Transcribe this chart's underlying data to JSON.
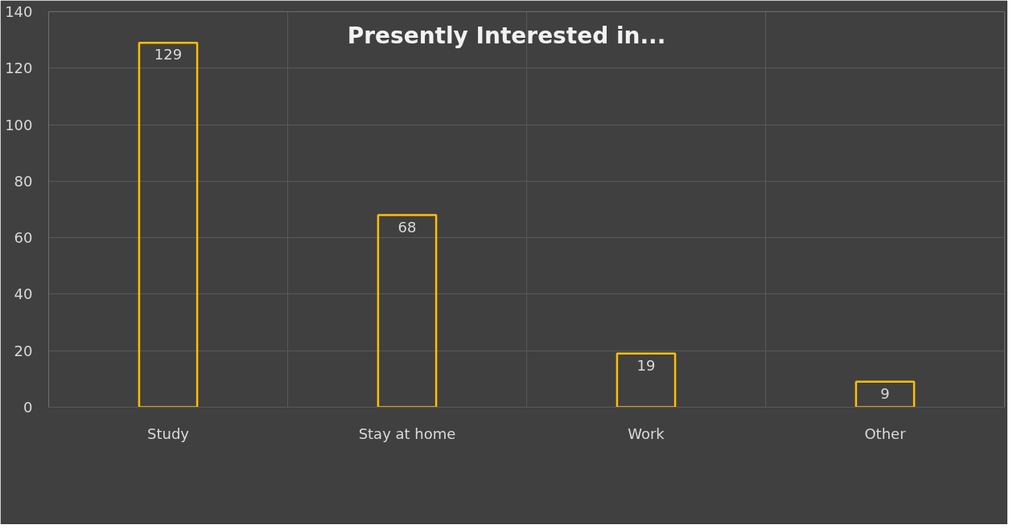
{
  "chart_data": {
    "type": "bar",
    "title": "Presently Interested in...",
    "categories": [
      "Study",
      "Stay at home",
      "Work",
      "Other"
    ],
    "values": [
      129,
      68,
      19,
      9
    ],
    "color": "#ffc000",
    "ylim": [
      0,
      140
    ],
    "yticks": [
      0,
      20,
      40,
      60,
      80,
      100,
      120,
      140
    ],
    "grid": true,
    "data_labels": true
  }
}
